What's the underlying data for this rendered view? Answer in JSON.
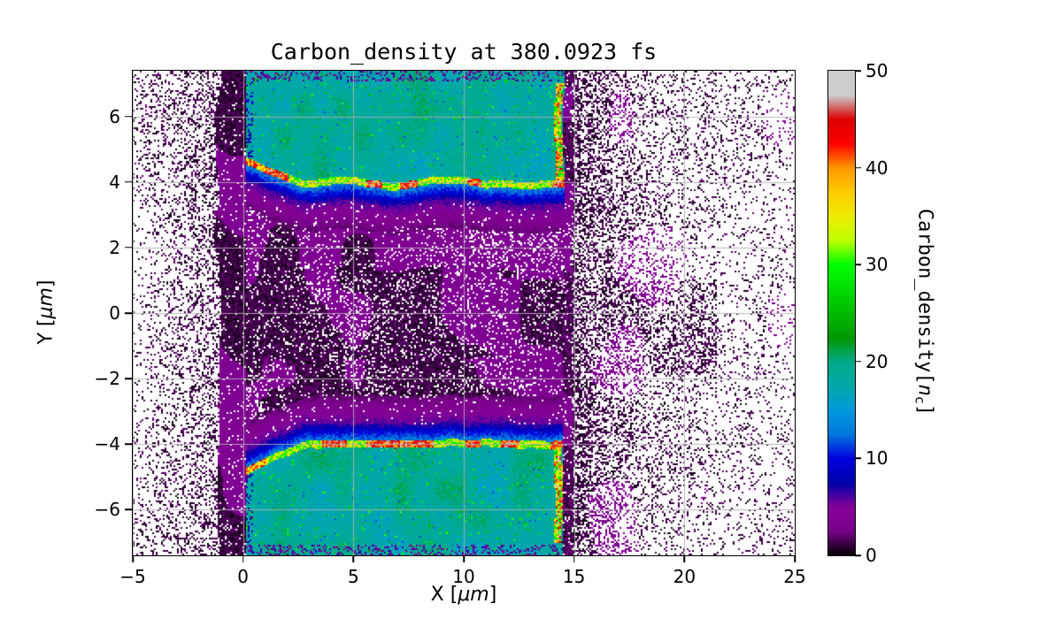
{
  "chart_data": {
    "type": "heatmap",
    "title": "Carbon_density at 380.0923 fs",
    "time_fs": 380.0923,
    "xlabel": {
      "pre": "X [",
      "em": "μm",
      "post": "]"
    },
    "ylabel": {
      "pre": "Y [",
      "em": "μm",
      "post": "]"
    },
    "xlim": [
      -5,
      25
    ],
    "ylim": [
      -7.4,
      7.4
    ],
    "xticks": [
      -5,
      0,
      5,
      10,
      15,
      20,
      25
    ],
    "yticks": [
      -6,
      -4,
      -2,
      0,
      2,
      4,
      6
    ],
    "grid": true,
    "grid_color": "#b0b0b0",
    "colorbar": {
      "label": {
        "pre": "Carbon_density[",
        "em": "n",
        "sub": "c",
        "post": "]"
      },
      "vmin": 0,
      "vmax": 50,
      "ticks": [
        0,
        10,
        20,
        30,
        40,
        50
      ],
      "colormap": "nipy_spectral",
      "stops": [
        [
          0.0,
          0,
          0,
          0
        ],
        [
          0.05,
          119,
          0,
          136
        ],
        [
          0.1,
          136,
          0,
          153
        ],
        [
          0.15,
          0,
          0,
          170
        ],
        [
          0.2,
          0,
          0,
          221
        ],
        [
          0.25,
          0,
          119,
          221
        ],
        [
          0.3,
          0,
          153,
          221
        ],
        [
          0.35,
          0,
          170,
          170
        ],
        [
          0.4,
          0,
          170,
          136
        ],
        [
          0.45,
          0,
          153,
          0
        ],
        [
          0.5,
          0,
          187,
          0
        ],
        [
          0.55,
          0,
          221,
          0
        ],
        [
          0.6,
          0,
          255,
          0
        ],
        [
          0.65,
          187,
          255,
          0
        ],
        [
          0.7,
          238,
          238,
          0
        ],
        [
          0.75,
          255,
          204,
          0
        ],
        [
          0.8,
          255,
          153,
          0
        ],
        [
          0.85,
          255,
          0,
          0
        ],
        [
          0.9,
          221,
          0,
          0
        ],
        [
          0.95,
          204,
          204,
          204
        ],
        [
          1.0,
          204,
          204,
          204
        ]
      ]
    },
    "structure": {
      "slab_x": [
        0.12,
        14.5
      ],
      "front_y_flat": 3.85,
      "front_bend_start_x": 2.7,
      "front_left_y_max": 4.6,
      "front_thickness_um": 0.22,
      "bulk_density_nc": 19,
      "front_density_nc": [
        27,
        50
      ],
      "blue_band_density_nc": [
        5,
        13
      ],
      "purple_band_density_nc": [
        1,
        6
      ],
      "channel_density_nc": [
        0,
        5
      ],
      "left_dark_band_x": [
        -1.15,
        0.12
      ],
      "right_edge_line_top_y": 7.0
    },
    "regions": [
      {
        "name": "upper_slab_bulk",
        "x": [
          0.1,
          14.5
        ],
        "y": [
          4.1,
          7.4
        ],
        "density_nc": 20,
        "color": "teal"
      },
      {
        "name": "upper_slab_front",
        "x": [
          0.1,
          14.5
        ],
        "y": [
          3.8,
          4.1
        ],
        "density_nc": "30-50",
        "note": "bright compressed front line, curves up to y~4.6 near x~0.5"
      },
      {
        "name": "lower_slab_bulk",
        "x": [
          0.1,
          14.5
        ],
        "y": [
          -7.4,
          -4.1
        ],
        "density_nc": 20,
        "color": "teal"
      },
      {
        "name": "lower_slab_front",
        "x": [
          0.1,
          14.5
        ],
        "y": [
          -4.1,
          -3.8
        ],
        "density_nc": "30-50",
        "note": "mirror of upper front, dips to y~-4.6 near x~0.5"
      },
      {
        "name": "central_channel",
        "x": [
          0,
          14.5
        ],
        "y": [
          -3,
          3
        ],
        "density_nc": "0-5",
        "note": "dark speckled low-density plasma with purple patches"
      },
      {
        "name": "right_slab_edges",
        "x": [
          14.2,
          14.6
        ],
        "y": "slab vertical extent",
        "density_nc": "25-50",
        "note": "bright green/yellow/red vertical edge"
      },
      {
        "name": "vacuum_left",
        "x": [
          -5,
          -1.2
        ],
        "density_nc": "0-2",
        "note": "sparse black speckle on white"
      },
      {
        "name": "vacuum_right",
        "x": [
          15,
          25
        ],
        "density_nc": "0-3",
        "note": "dense speckle near x=15 thinning toward x=25"
      }
    ]
  }
}
